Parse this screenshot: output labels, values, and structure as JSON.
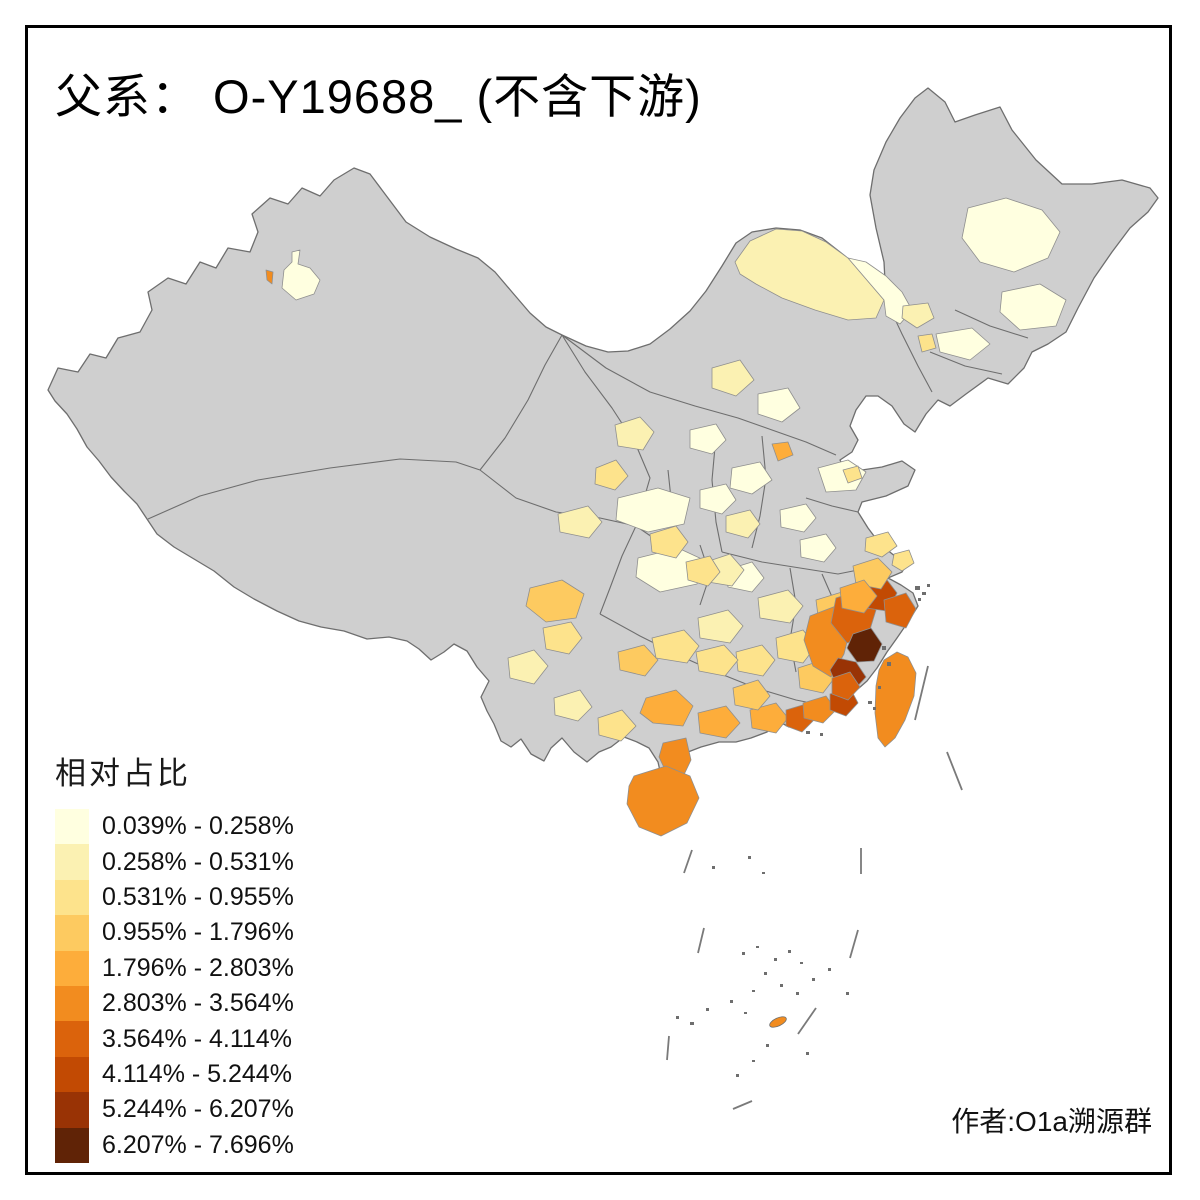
{
  "title": "父系： O-Y19688_ (不含下游)",
  "legend": {
    "title": "相对占比",
    "classes": [
      {
        "label": "0.039% - 0.258%",
        "color": "#FFFFE0"
      },
      {
        "label": "0.258% - 0.531%",
        "color": "#FBF1B2"
      },
      {
        "label": "0.531% - 0.955%",
        "color": "#FDE38C"
      },
      {
        "label": "0.955% - 1.796%",
        "color": "#FDCA60"
      },
      {
        "label": "1.796% - 2.803%",
        "color": "#FDAD3B"
      },
      {
        "label": "2.803% - 3.564%",
        "color": "#F28C1F"
      },
      {
        "label": "3.564% - 4.114%",
        "color": "#DB630C"
      },
      {
        "label": "4.114% - 5.244%",
        "color": "#C24A03"
      },
      {
        "label": "5.244% - 6.207%",
        "color": "#993305"
      },
      {
        "label": "6.207% - 7.696%",
        "color": "#602306"
      }
    ]
  },
  "attribution": "作者:O1a溯源群",
  "map": {
    "no_data_fill": "#CFCFCF",
    "boundary_color": "#6E6E6E",
    "dash_color": "#7A7A7A",
    "speck_color": "#6E6E6E",
    "sea_color": "#FFFFFF",
    "regions": [
      {
        "id": "xinjiang-urumqi",
        "class": 1
      },
      {
        "id": "xinjiang-shihezi",
        "class": 6
      },
      {
        "id": "inner-mongolia-band",
        "class": 2
      },
      {
        "id": "inner-mongolia-east",
        "class": 1
      },
      {
        "id": "heilongjiang-west",
        "class": 1
      },
      {
        "id": "heilongjiang-east",
        "class": 1
      },
      {
        "id": "liaoning-north",
        "class": 2
      },
      {
        "id": "liaoning-spot",
        "class": 3
      },
      {
        "id": "liaoning-coast",
        "class": 1
      },
      {
        "id": "ivory-scatter",
        "class": 1
      },
      {
        "id": "pale-scatter",
        "class": 2
      },
      {
        "id": "light-scatter",
        "class": 3
      },
      {
        "id": "hebei-south-spot",
        "class": 5
      },
      {
        "id": "gansu-east",
        "class": 2
      },
      {
        "id": "gansu-south",
        "class": 3
      },
      {
        "id": "qinghai-east",
        "class": 2
      },
      {
        "id": "yunnan-northwest",
        "class": 4
      },
      {
        "id": "yunnan-center",
        "class": 3
      },
      {
        "id": "yunnan-south",
        "class": 2
      },
      {
        "id": "yunnan-southeast",
        "class": 3
      },
      {
        "id": "guizhou-west",
        "class": 4
      },
      {
        "id": "guizhou-east",
        "class": 3
      },
      {
        "id": "hunan-west",
        "class": 2
      },
      {
        "id": "hunan-north",
        "class": 2
      },
      {
        "id": "hunan-south",
        "class": 3
      },
      {
        "id": "jiangxi-center",
        "class": 3
      },
      {
        "id": "jiangxi-south",
        "class": 4
      },
      {
        "id": "guangxi-north",
        "class": 3
      },
      {
        "id": "guangxi-south",
        "class": 5
      },
      {
        "id": "guangxi-coast",
        "class": 5
      },
      {
        "id": "guangdong-west",
        "class": 5
      },
      {
        "id": "guangdong-north",
        "class": 4
      },
      {
        "id": "pearl-delta",
        "class": 7
      },
      {
        "id": "guangdong-east",
        "class": 6
      },
      {
        "id": "chaoshan",
        "class": 8
      },
      {
        "id": "leizhou",
        "class": 6
      },
      {
        "id": "hainan",
        "class": 6
      },
      {
        "id": "fujian-west",
        "class": 6
      },
      {
        "id": "fujian-nw",
        "class": 4
      },
      {
        "id": "fujian-north",
        "class": 7
      },
      {
        "id": "fujian-ne-coast",
        "class": 8
      },
      {
        "id": "fujian-core",
        "class": 10
      },
      {
        "id": "fujian-south",
        "class": 9
      },
      {
        "id": "fujian-xiamen",
        "class": 7
      },
      {
        "id": "zhejiang-south-wenzhou",
        "class": 7
      },
      {
        "id": "zhejiang-center",
        "class": 5
      },
      {
        "id": "zhejiang-north",
        "class": 4
      },
      {
        "id": "shanghai",
        "class": 3
      },
      {
        "id": "jiangsu-south",
        "class": 3
      },
      {
        "id": "shaanxi-south",
        "class": 3
      },
      {
        "id": "hubei-west",
        "class": 3
      },
      {
        "id": "taiwan",
        "class": 6
      },
      {
        "id": "south-sea-island",
        "class": 6
      }
    ]
  }
}
